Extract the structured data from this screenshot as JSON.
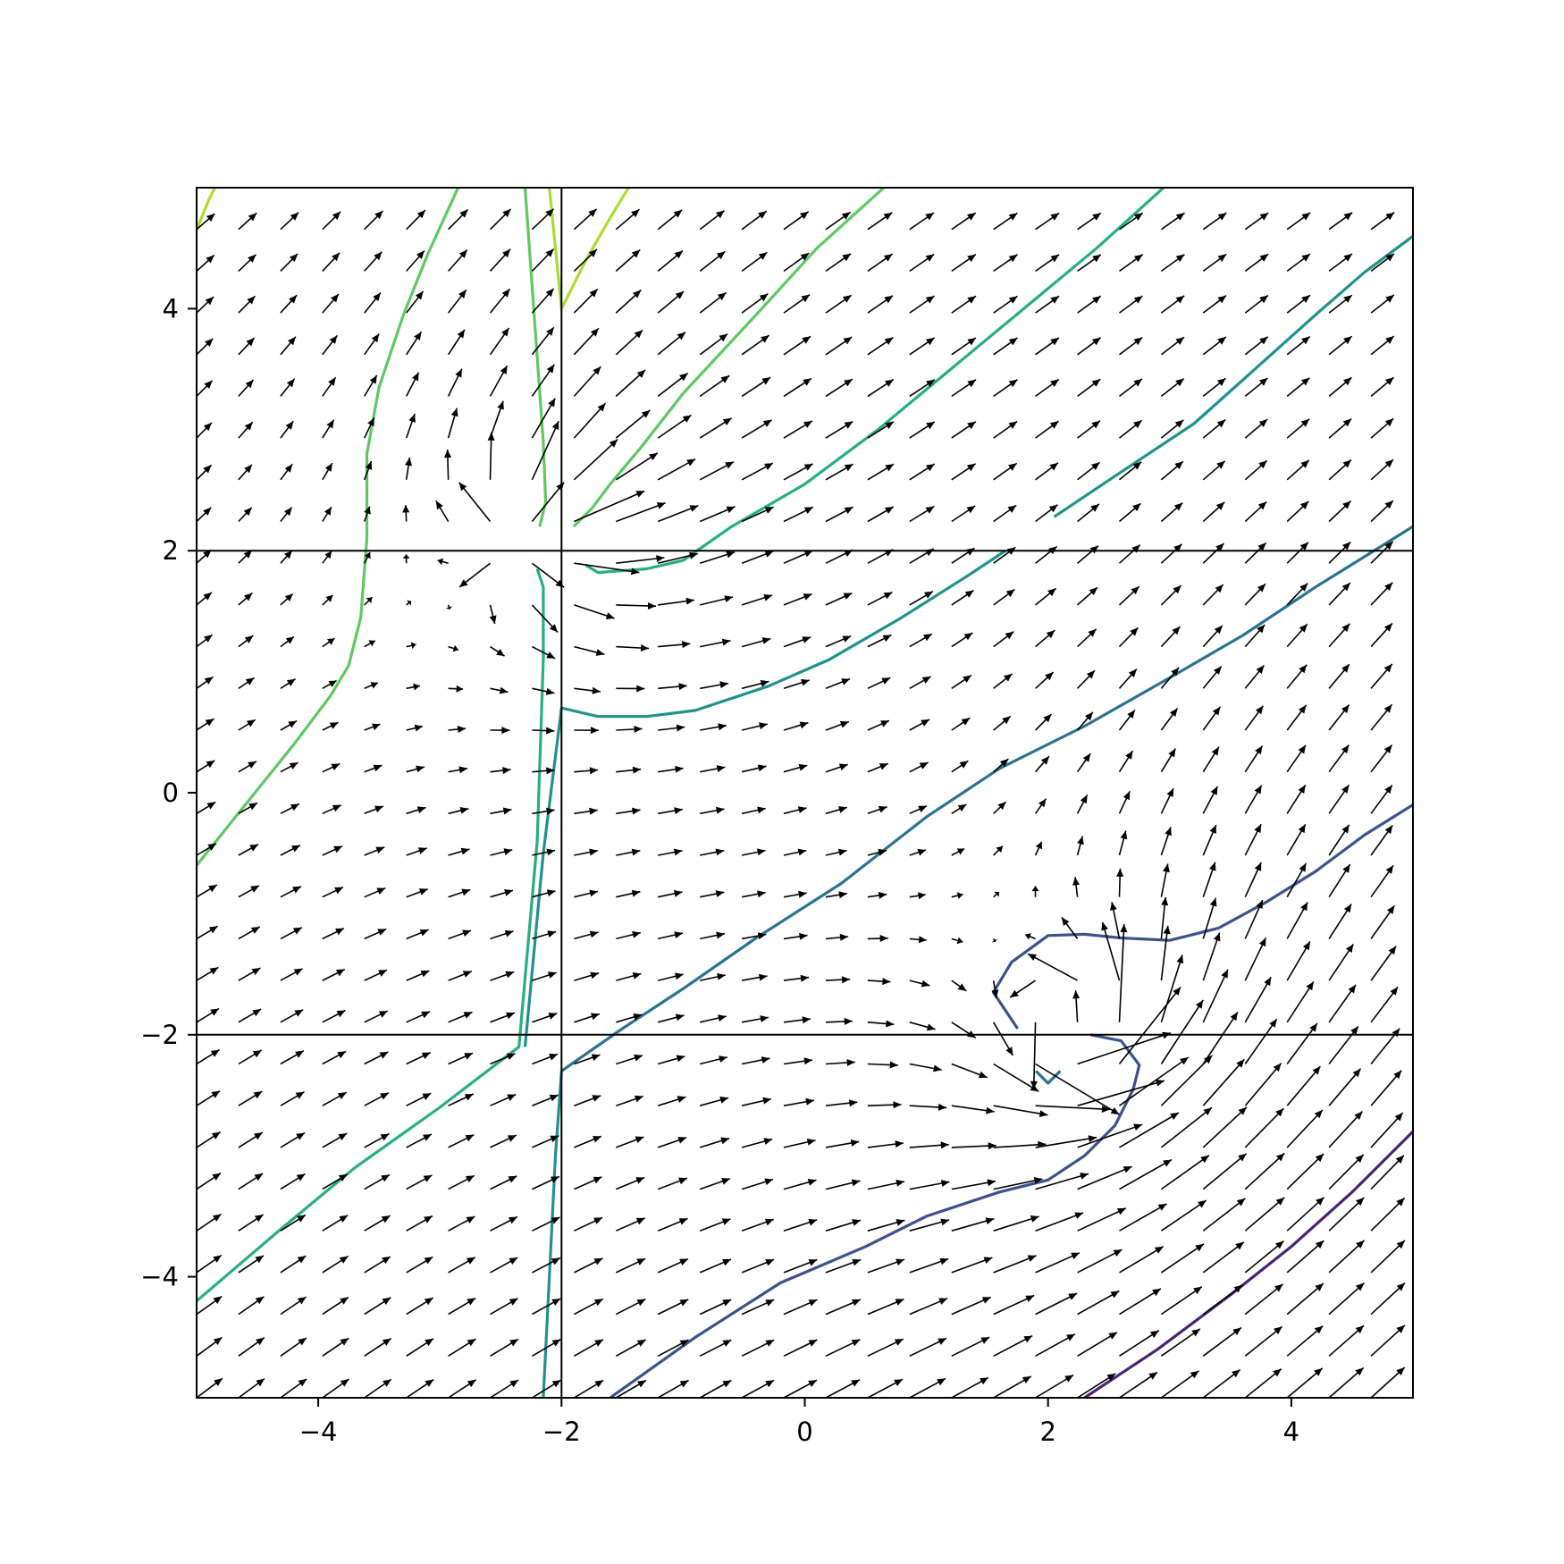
{
  "chart_data": {
    "type": "quiver",
    "title": "",
    "xlabel": "",
    "ylabel": "",
    "xlim": [
      -5,
      5
    ],
    "ylim": [
      -5,
      5
    ],
    "grid": false,
    "legend": "none",
    "x_ticks": [
      {
        "value": -4,
        "label": "−4"
      },
      {
        "value": -2,
        "label": "−2"
      },
      {
        "value": 0,
        "label": "0"
      },
      {
        "value": 2,
        "label": "2"
      },
      {
        "value": 4,
        "label": "4"
      }
    ],
    "y_ticks": [
      {
        "value": -4,
        "label": "−4"
      },
      {
        "value": -2,
        "label": "−2"
      },
      {
        "value": 0,
        "label": "0"
      },
      {
        "value": 2,
        "label": "2"
      },
      {
        "value": 4,
        "label": "4"
      }
    ],
    "discontinuities": {
      "x": [
        -2
      ],
      "y": [
        -2,
        2
      ]
    },
    "field_grid": {
      "n": 30,
      "min": -5,
      "max": 5
    },
    "arrow_color": "#000000",
    "contour_colors": [
      "#482475",
      "#3b528b",
      "#2c728e",
      "#21918c",
      "#28ae80",
      "#5ec962",
      "#addc30"
    ],
    "contours": [
      {
        "color": "#482475",
        "points": [
          [
            2.3,
            -5
          ],
          [
            2.9,
            -4.6
          ],
          [
            3.5,
            -4.15
          ],
          [
            4.0,
            -3.75
          ],
          [
            4.5,
            -3.3
          ],
          [
            5,
            -2.8
          ]
        ]
      },
      {
        "color": "#3b528b",
        "points": [
          [
            -1.6,
            -5
          ],
          [
            -0.9,
            -4.5
          ],
          [
            -0.2,
            -4.05
          ],
          [
            0.5,
            -3.75
          ],
          [
            1.0,
            -3.5
          ],
          [
            1.6,
            -3.3
          ],
          [
            2.0,
            -3.2
          ],
          [
            2.3,
            -3.0
          ],
          [
            2.55,
            -2.75
          ],
          [
            2.7,
            -2.45
          ],
          [
            2.75,
            -2.25
          ],
          [
            2.6,
            -2.05
          ],
          [
            2.35,
            -2.0
          ]
        ]
      },
      {
        "color": "#3b528b",
        "points": [
          [
            1.75,
            -1.95
          ],
          [
            1.55,
            -1.65
          ],
          [
            1.7,
            -1.4
          ],
          [
            2.0,
            -1.18
          ],
          [
            2.3,
            -1.17
          ],
          [
            2.6,
            -1.2
          ],
          [
            3.0,
            -1.22
          ],
          [
            3.4,
            -1.12
          ],
          [
            3.8,
            -0.9
          ],
          [
            4.2,
            -0.65
          ],
          [
            4.6,
            -0.35
          ],
          [
            5,
            -0.1
          ]
        ]
      },
      {
        "color": "#2c728e",
        "points": [
          [
            -2,
            -2.3
          ],
          [
            -1.5,
            -1.95
          ],
          [
            -1.0,
            -1.62
          ],
          [
            -0.4,
            -1.2
          ],
          [
            0.3,
            -0.75
          ],
          [
            1.0,
            -0.2
          ],
          [
            1.6,
            0.2
          ],
          [
            2.3,
            0.55
          ],
          [
            3.0,
            0.95
          ],
          [
            3.6,
            1.3
          ],
          [
            4.2,
            1.7
          ],
          [
            4.6,
            1.95
          ],
          [
            5,
            2.2
          ]
        ]
      },
      {
        "color": "#2c728e",
        "points": [
          [
            1.9,
            -2.3
          ],
          [
            2.0,
            -2.4
          ],
          [
            2.1,
            -2.3
          ]
        ]
      },
      {
        "color": "#21918c",
        "points": [
          [
            -2.15,
            -5
          ],
          [
            -2.1,
            -4.0
          ],
          [
            -2.05,
            -3.0
          ],
          [
            -2.0,
            -2.3
          ]
        ]
      },
      {
        "color": "#21918c",
        "points": [
          [
            -2,
            0.7
          ],
          [
            -1.7,
            0.63
          ],
          [
            -1.3,
            0.63
          ],
          [
            -0.9,
            0.68
          ],
          [
            -0.3,
            0.88
          ],
          [
            0.2,
            1.1
          ],
          [
            0.8,
            1.45
          ],
          [
            1.35,
            1.8
          ],
          [
            1.65,
            2.0
          ]
        ]
      },
      {
        "color": "#21918c",
        "points": [
          [
            2.05,
            2.28
          ],
          [
            2.6,
            2.65
          ],
          [
            3.2,
            3.05
          ],
          [
            3.7,
            3.5
          ],
          [
            4.2,
            3.95
          ],
          [
            4.6,
            4.3
          ],
          [
            5,
            4.6
          ]
        ]
      },
      {
        "color": "#21918c",
        "points": [
          [
            -2.0,
            0.7
          ],
          [
            -2.15,
            -0.5
          ],
          [
            -2.3,
            -2.1
          ]
        ]
      },
      {
        "color": "#28ae80",
        "points": [
          [
            -5,
            -4.2
          ],
          [
            -4.3,
            -3.6
          ],
          [
            -3.7,
            -3.1
          ],
          [
            -3.0,
            -2.6
          ],
          [
            -2.35,
            -2.1
          ],
          [
            -2.2,
            -0.4
          ],
          [
            -2.15,
            1.1
          ],
          [
            -2.15,
            1.7
          ],
          [
            -2.2,
            1.85
          ]
        ]
      },
      {
        "color": "#28ae80",
        "points": [
          [
            -1.8,
            1.88
          ],
          [
            -1.7,
            1.82
          ],
          [
            -1.3,
            1.85
          ],
          [
            -1.0,
            1.92
          ],
          [
            -0.6,
            2.2
          ],
          [
            0,
            2.55
          ],
          [
            0.6,
            3.0
          ],
          [
            1.2,
            3.5
          ],
          [
            1.8,
            4.0
          ],
          [
            2.4,
            4.5
          ],
          [
            2.95,
            5
          ]
        ]
      },
      {
        "color": "#5ec962",
        "points": [
          [
            -5,
            -0.6
          ],
          [
            -4.6,
            -0.1
          ],
          [
            -4.2,
            0.4
          ],
          [
            -3.9,
            0.8
          ],
          [
            -3.75,
            1.05
          ],
          [
            -3.65,
            1.45
          ],
          [
            -3.6,
            2.1
          ],
          [
            -3.6,
            2.8
          ],
          [
            -3.5,
            3.35
          ],
          [
            -3.3,
            3.95
          ],
          [
            -3.1,
            4.45
          ],
          [
            -2.85,
            5
          ]
        ]
      },
      {
        "color": "#5ec962",
        "points": [
          [
            -2.3,
            5
          ],
          [
            -2.25,
            4.3
          ],
          [
            -2.2,
            3.6
          ],
          [
            -2.15,
            2.9
          ],
          [
            -2.13,
            2.4
          ],
          [
            -2.18,
            2.2
          ]
        ]
      },
      {
        "color": "#5ec962",
        "points": [
          [
            -1.9,
            2.2
          ],
          [
            -1.75,
            2.35
          ],
          [
            -1.6,
            2.55
          ],
          [
            -1.35,
            2.85
          ],
          [
            -1.0,
            3.3
          ],
          [
            -0.4,
            3.95
          ],
          [
            0.1,
            4.5
          ],
          [
            0.65,
            5
          ]
        ]
      },
      {
        "color": "#addc30",
        "points": [
          [
            -5,
            4.65
          ],
          [
            -4.9,
            4.9
          ],
          [
            -4.85,
            5
          ]
        ]
      },
      {
        "color": "#addc30",
        "points": [
          [
            -2.1,
            5
          ],
          [
            -2.0,
            4.0
          ],
          [
            -1.8,
            4.4
          ],
          [
            -1.6,
            4.75
          ],
          [
            -1.45,
            5
          ]
        ]
      }
    ]
  }
}
